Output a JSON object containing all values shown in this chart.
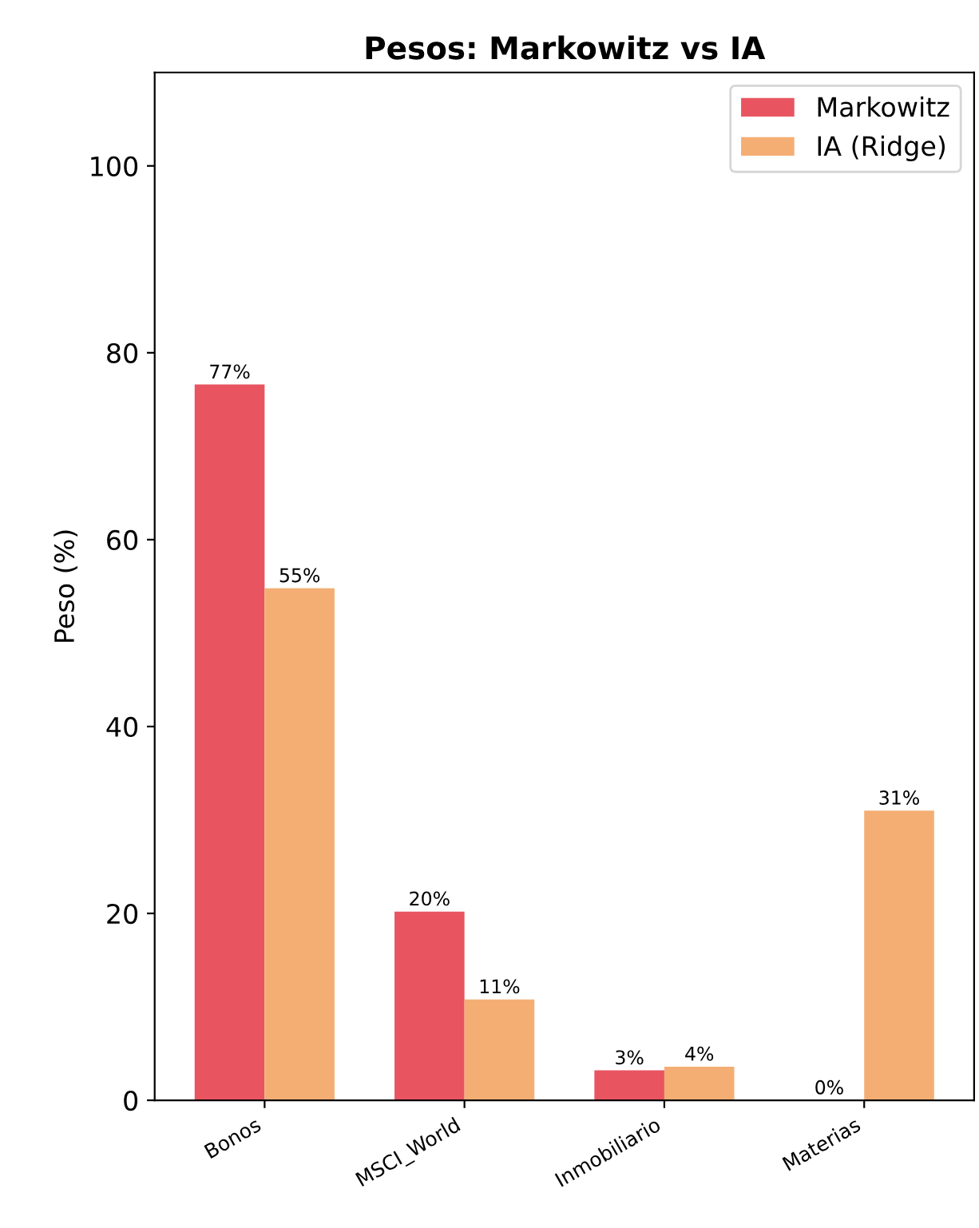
{
  "chart_data": {
    "type": "bar",
    "title": "Pesos: Markowitz vs IA",
    "ylabel": "Peso (%)",
    "categories": [
      "Bonos",
      "MSCI_World",
      "Inmobiliario",
      "Materias"
    ],
    "series": [
      {
        "name": "Markowitz",
        "color": "#e85561",
        "values": [
          76.6,
          20.2,
          3.2,
          0
        ],
        "value_labels": [
          "77%",
          "20%",
          "3%",
          "0%"
        ]
      },
      {
        "name": "IA (Ridge)",
        "color": "#f4ae74",
        "values": [
          54.8,
          10.8,
          3.6,
          31.0
        ],
        "value_labels": [
          "55%",
          "11%",
          "4%",
          "31%"
        ]
      }
    ],
    "ylim": [
      0,
      110
    ],
    "yticks": [
      0,
      20,
      40,
      60,
      80,
      100
    ],
    "legend": "top right",
    "grid": false
  }
}
